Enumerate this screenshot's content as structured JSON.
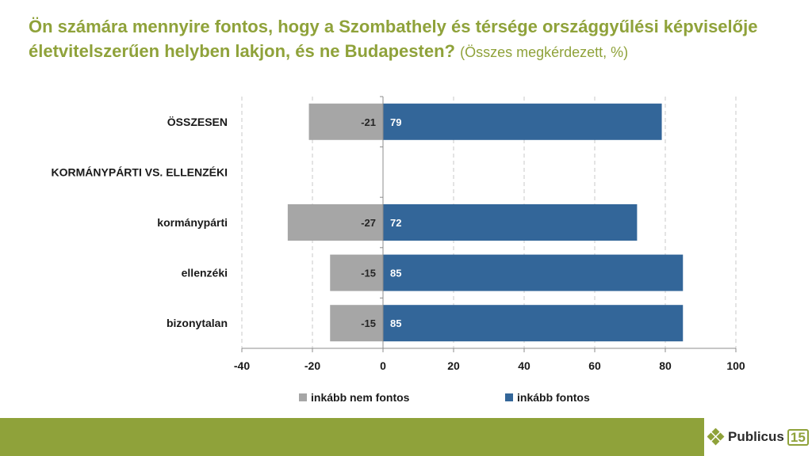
{
  "title": {
    "main": "Ön számára mennyire fontos, hogy a Szombathely és térsége országgyűlési képviselője életvitelszerűen helyben lakjon, és ne Budapesten?",
    "sub": "(Összes megkérdezett, %)"
  },
  "colors": {
    "accent": "#8fa23a",
    "negative": "#a6a6a6",
    "positive": "#336699"
  },
  "chart_data": {
    "type": "bar",
    "orientation": "horizontal",
    "title": "Ön számára mennyire fontos, hogy a Szombathely és térsége országgyűlési képviselője életvitelszerűen helyben lakjon, és ne Budapesten?",
    "categories": [
      "ÖSSZESEN",
      "KORMÁNYPÁRTI VS. ELLENZÉKI",
      "kormánypárti",
      "ellenzéki",
      "bizonytalan"
    ],
    "bold_categories": [
      "ÖSSZESEN",
      "KORMÁNYPÁRTI VS. ELLENZÉKI"
    ],
    "series": [
      {
        "name": "inkább nem fontos",
        "values": [
          -21,
          null,
          -27,
          -15,
          -15
        ],
        "color": "#a6a6a6"
      },
      {
        "name": "inkább fontos",
        "values": [
          79,
          null,
          72,
          85,
          85
        ],
        "color": "#336699"
      }
    ],
    "xlim": [
      -40,
      100
    ],
    "xticks": [
      -40,
      -20,
      0,
      20,
      40,
      60,
      80,
      100
    ],
    "grid": true,
    "legend": "bottom"
  },
  "logo": {
    "text": "Publicus",
    "number": "15"
  }
}
